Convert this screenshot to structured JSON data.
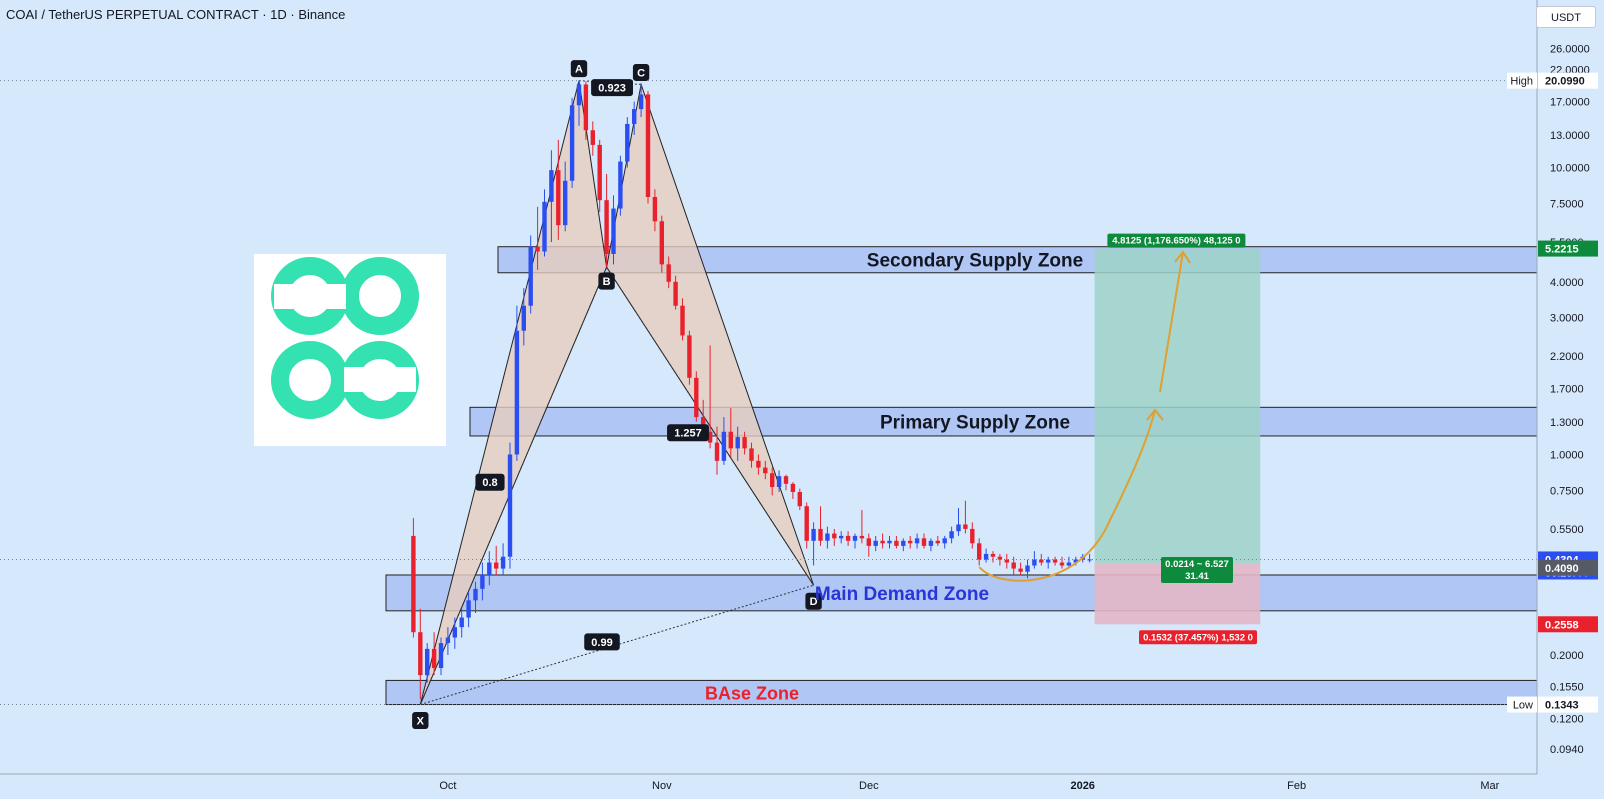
{
  "title": "COAI / TetherUS PERPETUAL CONTRACT · 1D · Binance",
  "currency": "USDT",
  "colors": {
    "background": "#d6e8fb",
    "up": "#2b4ef0",
    "down": "#e8212d",
    "zone_fill": "#a9bff3",
    "target_fill": "#9fd2c8",
    "stop_fill": "#e3b6c6",
    "pattern_fill": "#e6cdbf",
    "logo": "#34e1b0",
    "path": "#e0a030"
  },
  "chart_data": {
    "type": "candlestick",
    "y_scale": "log",
    "ylim": [
      0.082,
      29
    ],
    "x_axis": {
      "labels": [
        {
          "label": "Oct",
          "date": "2025-10-01"
        },
        {
          "label": "Nov",
          "date": "2025-11-01"
        },
        {
          "label": "Dec",
          "date": "2025-12-01"
        },
        {
          "label": "2026",
          "date": "2026-01-01"
        },
        {
          "label": "Feb",
          "date": "2026-02-01"
        },
        {
          "label": "Mar",
          "date": "2026-03-01"
        }
      ]
    },
    "y_ticks": [
      "26.0000",
      "22.0000",
      "17.0000",
      "13.0000",
      "10.0000",
      "7.5000",
      "5.5000",
      "4.0000",
      "3.0000",
      "2.2000",
      "1.7000",
      "1.3000",
      "1.0000",
      "0.7500",
      "0.5500",
      "0.2000",
      "0.1550",
      "0.1200",
      "0.0940"
    ],
    "price_labels": [
      {
        "text": "20.0990",
        "value": 20.099,
        "style": "high",
        "note": "High"
      },
      {
        "text": "5.2215",
        "value": 5.2215,
        "style": "target"
      },
      {
        "text": "0.4304",
        "value": 0.4304,
        "style": "current",
        "sub": "06:25:44"
      },
      {
        "text": "0.4090",
        "value": 0.409,
        "style": "entry"
      },
      {
        "text": "0.2558",
        "value": 0.2558,
        "style": "stop"
      },
      {
        "text": "0.1343",
        "value": 0.1343,
        "style": "low",
        "note": "Low"
      }
    ],
    "candles": [
      {
        "d": "2025-09-26",
        "o": 0.52,
        "h": 0.6,
        "l": 0.23,
        "c": 0.24
      },
      {
        "d": "2025-09-27",
        "o": 0.24,
        "h": 0.29,
        "l": 0.14,
        "c": 0.17
      },
      {
        "d": "2025-09-28",
        "o": 0.17,
        "h": 0.22,
        "l": 0.16,
        "c": 0.21
      },
      {
        "d": "2025-09-29",
        "o": 0.21,
        "h": 0.24,
        "l": 0.17,
        "c": 0.18
      },
      {
        "d": "2025-09-30",
        "o": 0.18,
        "h": 0.23,
        "l": 0.17,
        "c": 0.22
      },
      {
        "d": "2025-10-01",
        "o": 0.22,
        "h": 0.25,
        "l": 0.2,
        "c": 0.23
      },
      {
        "d": "2025-10-02",
        "o": 0.23,
        "h": 0.27,
        "l": 0.21,
        "c": 0.25
      },
      {
        "d": "2025-10-03",
        "o": 0.25,
        "h": 0.29,
        "l": 0.23,
        "c": 0.27
      },
      {
        "d": "2025-10-04",
        "o": 0.27,
        "h": 0.33,
        "l": 0.25,
        "c": 0.31
      },
      {
        "d": "2025-10-05",
        "o": 0.31,
        "h": 0.36,
        "l": 0.28,
        "c": 0.34
      },
      {
        "d": "2025-10-06",
        "o": 0.34,
        "h": 0.42,
        "l": 0.31,
        "c": 0.38
      },
      {
        "d": "2025-10-07",
        "o": 0.38,
        "h": 0.46,
        "l": 0.35,
        "c": 0.42
      },
      {
        "d": "2025-10-08",
        "o": 0.42,
        "h": 0.48,
        "l": 0.38,
        "c": 0.4
      },
      {
        "d": "2025-10-09",
        "o": 0.4,
        "h": 0.49,
        "l": 0.38,
        "c": 0.44
      },
      {
        "d": "2025-10-10",
        "o": 0.44,
        "h": 1.1,
        "l": 0.4,
        "c": 1.0
      },
      {
        "d": "2025-10-11",
        "o": 1.0,
        "h": 3.3,
        "l": 0.95,
        "c": 2.7
      },
      {
        "d": "2025-10-12",
        "o": 2.7,
        "h": 3.8,
        "l": 2.4,
        "c": 3.3
      },
      {
        "d": "2025-10-13",
        "o": 3.3,
        "h": 5.8,
        "l": 3.1,
        "c": 5.3
      },
      {
        "d": "2025-10-14",
        "o": 5.3,
        "h": 7.3,
        "l": 4.4,
        "c": 5.1
      },
      {
        "d": "2025-10-15",
        "o": 5.1,
        "h": 8.4,
        "l": 4.9,
        "c": 7.6
      },
      {
        "d": "2025-10-16",
        "o": 7.6,
        "h": 11.5,
        "l": 5.5,
        "c": 9.8
      },
      {
        "d": "2025-10-17",
        "o": 9.8,
        "h": 12.5,
        "l": 5.6,
        "c": 6.3
      },
      {
        "d": "2025-10-18",
        "o": 6.3,
        "h": 10.5,
        "l": 6.0,
        "c": 9.0
      },
      {
        "d": "2025-10-19",
        "o": 9.0,
        "h": 17.5,
        "l": 8.5,
        "c": 16.5
      },
      {
        "d": "2025-10-20",
        "o": 16.5,
        "h": 20.1,
        "l": 14.0,
        "c": 19.5
      },
      {
        "d": "2025-10-21",
        "o": 19.5,
        "h": 20.0,
        "l": 12.5,
        "c": 13.5
      },
      {
        "d": "2025-10-22",
        "o": 13.5,
        "h": 14.5,
        "l": 11.0,
        "c": 12.0
      },
      {
        "d": "2025-10-23",
        "o": 12.0,
        "h": 12.5,
        "l": 7.0,
        "c": 7.7
      },
      {
        "d": "2025-10-24",
        "o": 7.7,
        "h": 9.5,
        "l": 4.5,
        "c": 5.0
      },
      {
        "d": "2025-10-25",
        "o": 5.0,
        "h": 8.0,
        "l": 4.6,
        "c": 7.2
      },
      {
        "d": "2025-10-26",
        "o": 7.2,
        "h": 11.0,
        "l": 6.8,
        "c": 10.5
      },
      {
        "d": "2025-10-27",
        "o": 10.5,
        "h": 15.0,
        "l": 10.0,
        "c": 14.2
      },
      {
        "d": "2025-10-28",
        "o": 14.2,
        "h": 17.0,
        "l": 13.0,
        "c": 16.0
      },
      {
        "d": "2025-10-29",
        "o": 16.0,
        "h": 19.5,
        "l": 15.0,
        "c": 18.0
      },
      {
        "d": "2025-10-30",
        "o": 18.0,
        "h": 18.5,
        "l": 7.5,
        "c": 7.9
      },
      {
        "d": "2025-10-31",
        "o": 7.9,
        "h": 8.4,
        "l": 6.0,
        "c": 6.5
      },
      {
        "d": "2025-11-01",
        "o": 6.5,
        "h": 6.8,
        "l": 4.3,
        "c": 4.6
      },
      {
        "d": "2025-11-02",
        "o": 4.6,
        "h": 4.9,
        "l": 3.8,
        "c": 4.0
      },
      {
        "d": "2025-11-03",
        "o": 4.0,
        "h": 4.2,
        "l": 3.2,
        "c": 3.3
      },
      {
        "d": "2025-11-04",
        "o": 3.3,
        "h": 3.5,
        "l": 2.5,
        "c": 2.6
      },
      {
        "d": "2025-11-05",
        "o": 2.6,
        "h": 2.7,
        "l": 1.75,
        "c": 1.85
      },
      {
        "d": "2025-11-06",
        "o": 1.85,
        "h": 1.95,
        "l": 1.3,
        "c": 1.35
      },
      {
        "d": "2025-11-07",
        "o": 1.35,
        "h": 1.55,
        "l": 1.15,
        "c": 1.2
      },
      {
        "d": "2025-11-08",
        "o": 1.2,
        "h": 2.4,
        "l": 1.05,
        "c": 1.1
      },
      {
        "d": "2025-11-09",
        "o": 1.1,
        "h": 1.25,
        "l": 0.85,
        "c": 0.95
      },
      {
        "d": "2025-11-10",
        "o": 0.95,
        "h": 1.35,
        "l": 0.92,
        "c": 1.2
      },
      {
        "d": "2025-11-11",
        "o": 1.2,
        "h": 1.45,
        "l": 0.98,
        "c": 1.05
      },
      {
        "d": "2025-11-12",
        "o": 1.05,
        "h": 1.25,
        "l": 0.95,
        "c": 1.15
      },
      {
        "d": "2025-11-13",
        "o": 1.15,
        "h": 1.2,
        "l": 1.0,
        "c": 1.05
      },
      {
        "d": "2025-11-14",
        "o": 1.05,
        "h": 1.1,
        "l": 0.9,
        "c": 0.95
      },
      {
        "d": "2025-11-15",
        "o": 0.95,
        "h": 1.0,
        "l": 0.85,
        "c": 0.9
      },
      {
        "d": "2025-11-16",
        "o": 0.9,
        "h": 0.95,
        "l": 0.82,
        "c": 0.86
      },
      {
        "d": "2025-11-17",
        "o": 0.86,
        "h": 0.9,
        "l": 0.72,
        "c": 0.77
      },
      {
        "d": "2025-11-18",
        "o": 0.77,
        "h": 0.88,
        "l": 0.74,
        "c": 0.84
      },
      {
        "d": "2025-11-19",
        "o": 0.84,
        "h": 0.85,
        "l": 0.75,
        "c": 0.79
      },
      {
        "d": "2025-11-20",
        "o": 0.79,
        "h": 0.8,
        "l": 0.7,
        "c": 0.74
      },
      {
        "d": "2025-11-21",
        "o": 0.74,
        "h": 0.76,
        "l": 0.64,
        "c": 0.66
      },
      {
        "d": "2025-11-22",
        "o": 0.66,
        "h": 0.68,
        "l": 0.47,
        "c": 0.5
      },
      {
        "d": "2025-11-23",
        "o": 0.5,
        "h": 0.58,
        "l": 0.41,
        "c": 0.55
      },
      {
        "d": "2025-11-24",
        "o": 0.55,
        "h": 0.66,
        "l": 0.48,
        "c": 0.5
      },
      {
        "d": "2025-11-25",
        "o": 0.5,
        "h": 0.56,
        "l": 0.47,
        "c": 0.53
      },
      {
        "d": "2025-11-26",
        "o": 0.53,
        "h": 0.55,
        "l": 0.48,
        "c": 0.51
      },
      {
        "d": "2025-11-27",
        "o": 0.51,
        "h": 0.54,
        "l": 0.49,
        "c": 0.52
      },
      {
        "d": "2025-11-28",
        "o": 0.52,
        "h": 0.54,
        "l": 0.48,
        "c": 0.5
      },
      {
        "d": "2025-11-29",
        "o": 0.5,
        "h": 0.53,
        "l": 0.47,
        "c": 0.52
      },
      {
        "d": "2025-11-30",
        "o": 0.52,
        "h": 0.64,
        "l": 0.49,
        "c": 0.51
      },
      {
        "d": "2025-12-01",
        "o": 0.51,
        "h": 0.53,
        "l": 0.44,
        "c": 0.48
      },
      {
        "d": "2025-12-02",
        "o": 0.48,
        "h": 0.52,
        "l": 0.46,
        "c": 0.5
      },
      {
        "d": "2025-12-03",
        "o": 0.5,
        "h": 0.53,
        "l": 0.47,
        "c": 0.49
      },
      {
        "d": "2025-12-04",
        "o": 0.49,
        "h": 0.52,
        "l": 0.47,
        "c": 0.5
      },
      {
        "d": "2025-12-05",
        "o": 0.5,
        "h": 0.52,
        "l": 0.47,
        "c": 0.48
      },
      {
        "d": "2025-12-06",
        "o": 0.48,
        "h": 0.51,
        "l": 0.46,
        "c": 0.5
      },
      {
        "d": "2025-12-07",
        "o": 0.5,
        "h": 0.52,
        "l": 0.47,
        "c": 0.49
      },
      {
        "d": "2025-12-08",
        "o": 0.49,
        "h": 0.53,
        "l": 0.47,
        "c": 0.51
      },
      {
        "d": "2025-12-09",
        "o": 0.51,
        "h": 0.53,
        "l": 0.47,
        "c": 0.48
      },
      {
        "d": "2025-12-10",
        "o": 0.48,
        "h": 0.51,
        "l": 0.46,
        "c": 0.5
      },
      {
        "d": "2025-12-11",
        "o": 0.5,
        "h": 0.52,
        "l": 0.48,
        "c": 0.49
      },
      {
        "d": "2025-12-12",
        "o": 0.49,
        "h": 0.52,
        "l": 0.47,
        "c": 0.51
      },
      {
        "d": "2025-12-13",
        "o": 0.51,
        "h": 0.56,
        "l": 0.49,
        "c": 0.54
      },
      {
        "d": "2025-12-14",
        "o": 0.54,
        "h": 0.65,
        "l": 0.52,
        "c": 0.57
      },
      {
        "d": "2025-12-15",
        "o": 0.57,
        "h": 0.69,
        "l": 0.53,
        "c": 0.55
      },
      {
        "d": "2025-12-16",
        "o": 0.55,
        "h": 0.58,
        "l": 0.47,
        "c": 0.49
      },
      {
        "d": "2025-12-17",
        "o": 0.49,
        "h": 0.51,
        "l": 0.41,
        "c": 0.43
      },
      {
        "d": "2025-12-18",
        "o": 0.43,
        "h": 0.47,
        "l": 0.42,
        "c": 0.45
      },
      {
        "d": "2025-12-19",
        "o": 0.45,
        "h": 0.46,
        "l": 0.42,
        "c": 0.44
      },
      {
        "d": "2025-12-20",
        "o": 0.44,
        "h": 0.45,
        "l": 0.41,
        "c": 0.43
      },
      {
        "d": "2025-12-21",
        "o": 0.43,
        "h": 0.45,
        "l": 0.4,
        "c": 0.42
      },
      {
        "d": "2025-12-22",
        "o": 0.42,
        "h": 0.44,
        "l": 0.38,
        "c": 0.4
      },
      {
        "d": "2025-12-23",
        "o": 0.4,
        "h": 0.42,
        "l": 0.38,
        "c": 0.39
      },
      {
        "d": "2025-12-24",
        "o": 0.39,
        "h": 0.43,
        "l": 0.37,
        "c": 0.41
      },
      {
        "d": "2025-12-25",
        "o": 0.41,
        "h": 0.46,
        "l": 0.4,
        "c": 0.43
      },
      {
        "d": "2025-12-26",
        "o": 0.43,
        "h": 0.45,
        "l": 0.41,
        "c": 0.42
      },
      {
        "d": "2025-12-27",
        "o": 0.42,
        "h": 0.44,
        "l": 0.4,
        "c": 0.43
      },
      {
        "d": "2025-12-28",
        "o": 0.43,
        "h": 0.44,
        "l": 0.41,
        "c": 0.42
      },
      {
        "d": "2025-12-29",
        "o": 0.42,
        "h": 0.44,
        "l": 0.4,
        "c": 0.41
      },
      {
        "d": "2025-12-30",
        "o": 0.41,
        "h": 0.44,
        "l": 0.4,
        "c": 0.42
      },
      {
        "d": "2025-12-31",
        "o": 0.42,
        "h": 0.44,
        "l": 0.41,
        "c": 0.43
      },
      {
        "d": "2026-01-01",
        "o": 0.43,
        "h": 0.45,
        "l": 0.42,
        "c": 0.44
      },
      {
        "d": "2026-01-02",
        "o": 0.43,
        "h": 0.45,
        "l": 0.42,
        "c": 0.4304
      }
    ]
  },
  "zones": [
    {
      "label": "Secondary Supply Zone",
      "top": 5.3,
      "bottom": 4.3,
      "label_color": "#131722"
    },
    {
      "label": "Primary Supply Zone",
      "top": 1.46,
      "bottom": 1.16,
      "label_color": "#131722"
    },
    {
      "label": "Main Demand Zone",
      "top": 0.38,
      "bottom": 0.285,
      "label_color": "#2a35d8"
    },
    {
      "label": "BAse Zone",
      "top": 0.163,
      "bottom": 0.1343,
      "label_color": "#e8212d"
    }
  ],
  "harmonic": {
    "points": [
      {
        "name": "X",
        "date": "2025-09-27",
        "price": 0.1343
      },
      {
        "name": "A",
        "date": "2025-10-20",
        "price": 20.099
      },
      {
        "name": "B",
        "date": "2025-10-24",
        "price": 4.5
      },
      {
        "name": "C",
        "date": "2025-10-29",
        "price": 19.5
      },
      {
        "name": "D",
        "date": "2025-11-23",
        "price": 0.35
      }
    ],
    "ratios": [
      "0.923",
      "0.8",
      "1.257",
      "0.99"
    ]
  },
  "position": {
    "start": "2026-01-02",
    "end": "2026-01-26",
    "entry": 0.409,
    "target": 5.2215,
    "stop": 0.2558,
    "target_label": "4.8125 (1,176.650%) 48,125 0",
    "center_label_1": "0.0214 ~ 6.527",
    "center_label_2": "31.41",
    "stop_label": "0.1532 (37.457%) 1,532 0"
  }
}
